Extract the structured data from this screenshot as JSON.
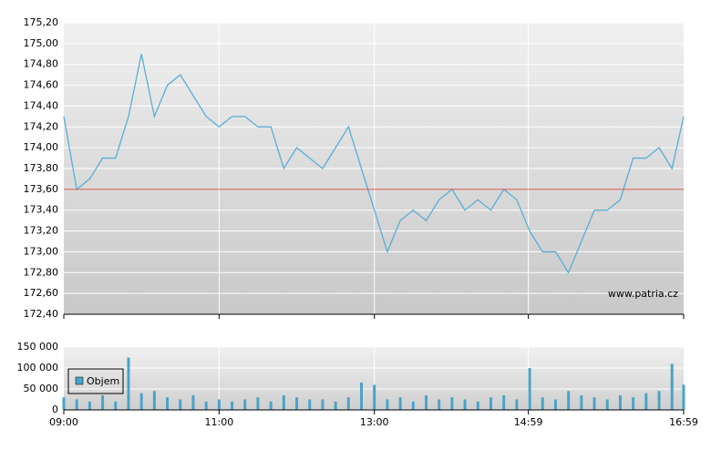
{
  "chart_data": [
    {
      "type": "line",
      "x": [
        "09:00",
        "09:10",
        "09:20",
        "09:30",
        "09:40",
        "09:50",
        "10:00",
        "10:10",
        "10:20",
        "10:30",
        "10:40",
        "10:50",
        "11:00",
        "11:10",
        "11:20",
        "11:30",
        "11:40",
        "11:50",
        "12:00",
        "12:10",
        "12:20",
        "12:30",
        "12:40",
        "12:50",
        "13:00",
        "13:10",
        "13:20",
        "13:30",
        "13:40",
        "13:50",
        "14:00",
        "14:10",
        "14:20",
        "14:30",
        "14:40",
        "14:50",
        "15:00",
        "15:10",
        "15:20",
        "15:30",
        "15:40",
        "15:50",
        "16:00",
        "16:10",
        "16:20",
        "16:30",
        "16:40",
        "16:50",
        "16:59"
      ],
      "series": [
        {
          "color": "#5aaed6",
          "values": [
            174.3,
            173.6,
            173.7,
            173.9,
            173.9,
            174.3,
            174.9,
            174.3,
            174.6,
            174.7,
            174.5,
            174.3,
            174.2,
            174.3,
            174.3,
            174.2,
            174.2,
            173.8,
            174.0,
            173.9,
            173.8,
            174.0,
            174.2,
            173.8,
            173.4,
            173.0,
            173.3,
            173.4,
            173.3,
            173.5,
            173.6,
            173.4,
            173.5,
            173.4,
            173.6,
            173.5,
            173.2,
            173.0,
            173.0,
            172.8,
            173.1,
            173.4,
            173.4,
            173.5,
            173.9,
            173.9,
            174.0,
            173.8,
            174.3
          ]
        }
      ],
      "reference_line": {
        "value": 173.6,
        "color": "#d9534f"
      },
      "xlim": [
        "09:00",
        "16:59"
      ],
      "ylim": [
        172.4,
        175.2
      ],
      "yticks": [
        {
          "value": 172.4,
          "label": "172,40"
        },
        {
          "value": 172.6,
          "label": "172,60"
        },
        {
          "value": 172.8,
          "label": "172,80"
        },
        {
          "value": 173.0,
          "label": "173,00"
        },
        {
          "value": 173.2,
          "label": "173,20"
        },
        {
          "value": 173.4,
          "label": "173,40"
        },
        {
          "value": 173.6,
          "label": "173,60"
        },
        {
          "value": 173.8,
          "label": "173,80"
        },
        {
          "value": 174.0,
          "label": "174,00"
        },
        {
          "value": 174.2,
          "label": "174,20"
        },
        {
          "value": 174.4,
          "label": "174,40"
        },
        {
          "value": 174.6,
          "label": "174,60"
        },
        {
          "value": 174.8,
          "label": "174,80"
        },
        {
          "value": 175.0,
          "label": "175,00"
        },
        {
          "value": 175.2,
          "label": "175,20"
        }
      ],
      "grid": true,
      "watermark": "www.patria.cz"
    },
    {
      "type": "bar",
      "x": [
        "09:00",
        "09:10",
        "09:20",
        "09:30",
        "09:40",
        "09:50",
        "10:00",
        "10:10",
        "10:20",
        "10:30",
        "10:40",
        "10:50",
        "11:00",
        "11:10",
        "11:20",
        "11:30",
        "11:40",
        "11:50",
        "12:00",
        "12:10",
        "12:20",
        "12:30",
        "12:40",
        "12:50",
        "13:00",
        "13:10",
        "13:20",
        "13:30",
        "13:40",
        "13:50",
        "14:00",
        "14:10",
        "14:20",
        "14:30",
        "14:40",
        "14:50",
        "15:00",
        "15:10",
        "15:20",
        "15:30",
        "15:40",
        "15:50",
        "16:00",
        "16:10",
        "16:20",
        "16:30",
        "16:40",
        "16:50",
        "16:59"
      ],
      "series": [
        {
          "name": "Objem",
          "color": "#4aa3c8",
          "values": [
            30000,
            25000,
            20000,
            35000,
            20000,
            125000,
            40000,
            45000,
            30000,
            25000,
            35000,
            20000,
            25000,
            20000,
            25000,
            30000,
            20000,
            35000,
            30000,
            25000,
            25000,
            20000,
            30000,
            65000,
            60000,
            25000,
            30000,
            20000,
            35000,
            25000,
            30000,
            25000,
            20000,
            30000,
            35000,
            25000,
            100000,
            30000,
            25000,
            45000,
            35000,
            30000,
            25000,
            35000,
            30000,
            40000,
            45000,
            110000,
            60000
          ]
        }
      ],
      "xlim": [
        "09:00",
        "16:59"
      ],
      "xticks": [
        "09:00",
        "11:00",
        "13:00",
        "14:59",
        "16:59"
      ],
      "ylim": [
        0,
        150000
      ],
      "yticks": [
        0,
        {
          "value": 50000,
          "label": "50 000"
        },
        {
          "value": 100000,
          "label": "100 000"
        },
        {
          "value": 150000,
          "label": "150 000"
        }
      ],
      "grid": true,
      "legend": "upper-left"
    }
  ]
}
